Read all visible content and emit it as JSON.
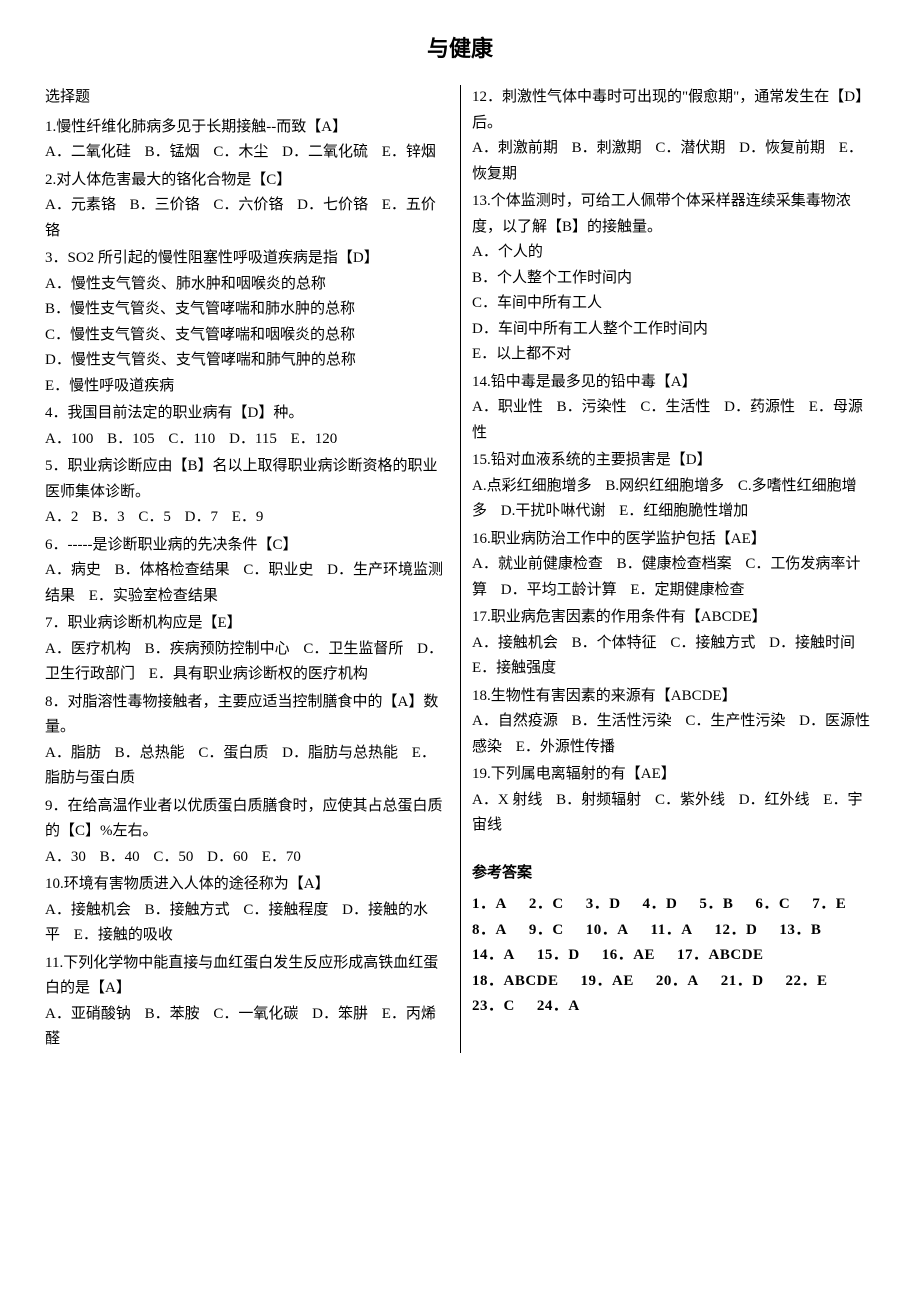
{
  "title": "与健康",
  "section_label": "选择题",
  "questions": [
    {
      "num": "1",
      "text": "1.慢性纤维化肺病多见于长期接触--而致【A】",
      "opt_layout": "inline",
      "opts": [
        "A．二氧化硅",
        "B．锰烟",
        "C．木尘",
        "D．二氧化硫",
        "E．锌烟"
      ]
    },
    {
      "num": "2",
      "text": "2.对人体危害最大的铬化合物是【C】",
      "opt_layout": "inline",
      "opts": [
        "A．元素铬",
        "B．三价铬",
        "C．六价铬",
        "D．七价铬",
        "E．五价铬"
      ]
    },
    {
      "num": "3",
      "text": "3．SO2 所引起的慢性阻塞性呼吸道疾病是指【D】",
      "opt_layout": "block",
      "opts": [
        "A．慢性支气管炎、肺水肿和咽喉炎的总称",
        "B．慢性支气管炎、支气管哮喘和肺水肿的总称",
        "C．慢性支气管炎、支气管哮喘和咽喉炎的总称",
        "D．慢性支气管炎、支气管哮喘和肺气肿的总称",
        "E．慢性呼吸道疾病"
      ]
    },
    {
      "num": "4",
      "text": "4．我国目前法定的职业病有【D】种。",
      "opt_layout": "inline",
      "opts": [
        "A．100",
        "B．105",
        "C．110",
        "D．115",
        "E．120"
      ]
    },
    {
      "num": "5",
      "text": "5．职业病诊断应由【B】名以上取得职业病诊断资格的职业医师集体诊断。",
      "opt_layout": "inline",
      "opts": [
        "A．2",
        "B．3",
        "C．5",
        "D．7",
        "E．9"
      ]
    },
    {
      "num": "6",
      "text": "6．-----是诊断职业病的先决条件【C】",
      "opt_layout": "inline",
      "opts": [
        "A．病史",
        "B．体格检查结果",
        "C．职业史",
        "D．生产环境监测结果",
        "E．实验室检查结果"
      ]
    },
    {
      "num": "7",
      "text": "7．职业病诊断机构应是【E】",
      "opt_layout": "inline",
      "opts": [
        "A．医疗机构",
        "B．疾病预防控制中心",
        "C．卫生监督所",
        "D．卫生行政部门",
        "E．具有职业病诊断权的医疗机构"
      ]
    },
    {
      "num": "8",
      "text": "8．对脂溶性毒物接触者，主要应适当控制膳食中的【A】数量。",
      "opt_layout": "inline",
      "opts": [
        "A．脂肪",
        "B．总热能",
        "C．蛋白质",
        "D．脂肪与总热能",
        "E．脂肪与蛋白质"
      ]
    },
    {
      "num": "9",
      "text": "9．在给高温作业者以优质蛋白质膳食时，应使其占总蛋白质的【C】%左右。",
      "opt_layout": "inline",
      "opts": [
        "A．30",
        "B．40",
        "C．50",
        "D．60",
        "E．70"
      ]
    },
    {
      "num": "10",
      "text": "10.环境有害物质进入人体的途径称为【A】",
      "opt_layout": "inline",
      "opts": [
        "A．接触机会",
        "B．接触方式",
        "C．接触程度",
        "D．接触的水平",
        "E．接触的吸收"
      ]
    },
    {
      "num": "11",
      "text": "11.下列化学物中能直接与血红蛋白发生反应形成高铁血红蛋白的是【A】",
      "opt_layout": "inline",
      "opts": [
        "A．亚硝酸钠",
        "B．苯胺",
        "C．一氧化碳",
        "D．笨肼",
        "E．丙烯醛"
      ]
    },
    {
      "num": "12",
      "text": "12．刺激性气体中毒时可出现的\"假愈期\"，通常发生在【D】后。",
      "opt_layout": "inline",
      "opts": [
        "A．刺激前期",
        "B．刺激期",
        "C．潜伏期",
        "D．恢复前期",
        "E．恢复期"
      ]
    },
    {
      "num": "13",
      "text": "13.个体监测时，可给工人佩带个体采样器连续采集毒物浓度，以了解【B】的接触量。",
      "opt_layout": "block",
      "opts": [
        "A．个人的",
        "B．个人整个工作时间内",
        "C．车间中所有工人",
        "D．车间中所有工人整个工作时间内",
        "E．以上都不对"
      ]
    },
    {
      "num": "14",
      "text": "14.铅中毒是最多见的铅中毒【A】",
      "opt_layout": "inline",
      "opts": [
        "A．职业性",
        "B．污染性",
        "C．生活性",
        "D．药源性",
        "E．母源性"
      ]
    },
    {
      "num": "15",
      "text": "15.铅对血液系统的主要损害是【D】",
      "opt_layout": "inline",
      "opts": [
        "A.点彩红细胞增多",
        "B.网织红细胞增多",
        "C.多嗜性红细胞增多",
        "D.干扰卟啉代谢",
        "E．红细胞脆性增加"
      ]
    },
    {
      "num": "16",
      "text": "16.职业病防治工作中的医学监护包括【AE】",
      "opt_layout": "inline",
      "opts": [
        "A．就业前健康检查",
        "B．健康检查档案",
        "C．工伤发病率计算",
        "D．平均工龄计算",
        "E．定期健康检查"
      ]
    },
    {
      "num": "17",
      "text": "17.职业病危害因素的作用条件有【ABCDE】",
      "opt_layout": "inline",
      "opts": [
        "A．接触机会",
        "B．个体特征",
        "C．接触方式",
        "D．接触时间",
        "E．接触强度"
      ]
    },
    {
      "num": "18",
      "text": "18.生物性有害因素的来源有【ABCDE】",
      "opt_layout": "inline",
      "opts": [
        "A．自然疫源",
        "B．生活性污染",
        "C．生产性污染",
        "D．医源性感染",
        "E．外源性传播"
      ]
    },
    {
      "num": "19",
      "text": "19.下列属电离辐射的有【AE】",
      "opt_layout": "inline",
      "opts": [
        "A．X 射线",
        "B．射频辐射",
        "C．紫外线",
        "D．红外线",
        "E．宇宙线"
      ]
    }
  ],
  "answers_title": "参考答案",
  "answers": [
    "1．A",
    "2．C",
    "3．D",
    "4．D",
    "5．B",
    "6．C",
    "7．E",
    "8．A",
    "9．C",
    "10．A",
    "11．A",
    "12．D",
    "13．B",
    "14．A",
    "15．D",
    "16．AE",
    "17．ABCDE",
    "18．ABCDE",
    "19．AE",
    "20．A",
    "21．D",
    "22．E",
    "23．C",
    "24．A"
  ]
}
